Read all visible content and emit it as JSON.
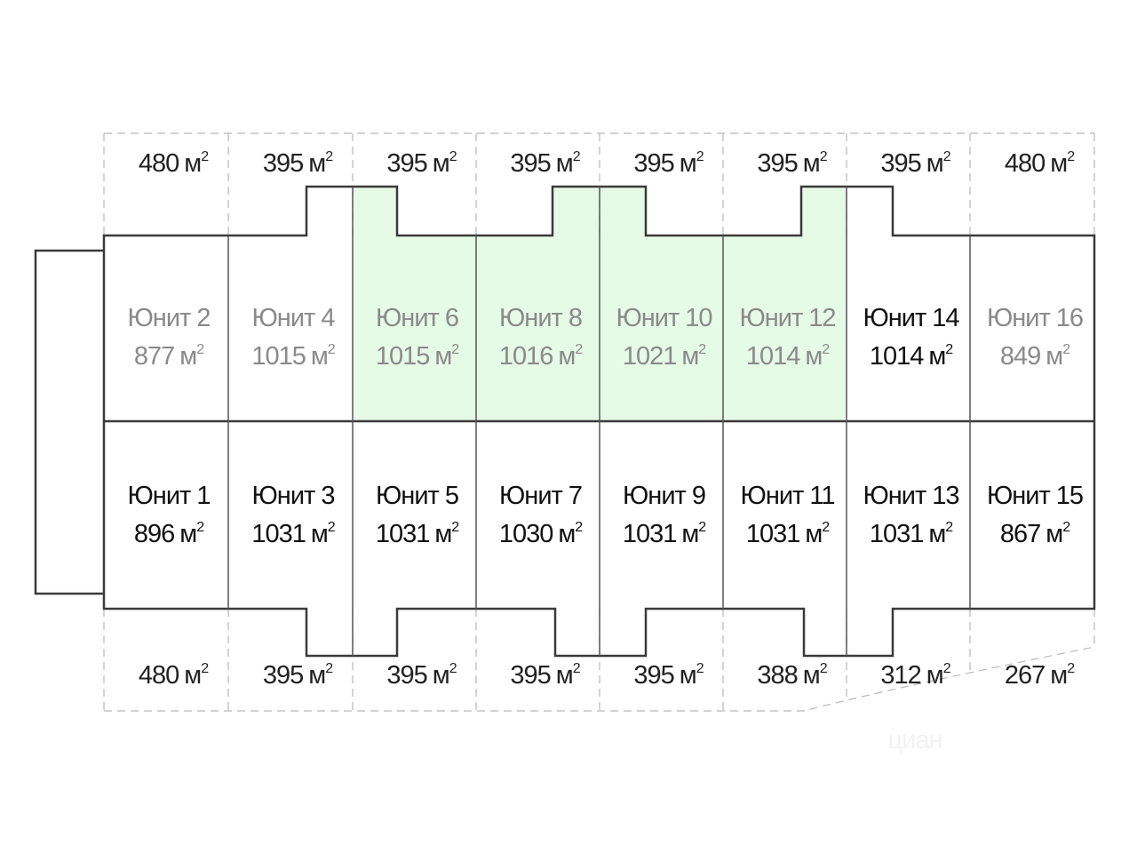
{
  "plan": {
    "unit_word": "Юнит",
    "area_unit": "м",
    "area_sup": "2",
    "highlight_color": "#e6fbe6",
    "top_plots": [
      "480",
      "395",
      "395",
      "395",
      "395",
      "395",
      "395",
      "480"
    ],
    "bottom_plots": [
      "480",
      "395",
      "395",
      "395",
      "395",
      "388",
      "312",
      "267"
    ],
    "upper_units": [
      {
        "name": "Юнит 2",
        "area": "877",
        "highlighted": false,
        "dim": true
      },
      {
        "name": "Юнит 4",
        "area": "1015",
        "highlighted": false,
        "dim": true
      },
      {
        "name": "Юнит 6",
        "area": "1015",
        "highlighted": true,
        "dim": true
      },
      {
        "name": "Юнит 8",
        "area": "1016",
        "highlighted": true,
        "dim": true
      },
      {
        "name": "Юнит 10",
        "area": "1021",
        "highlighted": true,
        "dim": true
      },
      {
        "name": "Юнит 12",
        "area": "1014",
        "highlighted": true,
        "dim": true
      },
      {
        "name": "Юнит 14",
        "area": "1014",
        "highlighted": false,
        "dim": false
      },
      {
        "name": "Юнит 16",
        "area": "849",
        "highlighted": false,
        "dim": true
      }
    ],
    "lower_units": [
      {
        "name": "Юнит 1",
        "area": "896"
      },
      {
        "name": "Юнит 3",
        "area": "1031"
      },
      {
        "name": "Юнит 5",
        "area": "1031"
      },
      {
        "name": "Юнит 7",
        "area": "1030"
      },
      {
        "name": "Юнит 9",
        "area": "1031"
      },
      {
        "name": "Юнит 11",
        "area": "1031"
      },
      {
        "name": "Юнит 13",
        "area": "1031"
      },
      {
        "name": "Юнит 15",
        "area": "867"
      }
    ]
  },
  "watermark": "циан"
}
